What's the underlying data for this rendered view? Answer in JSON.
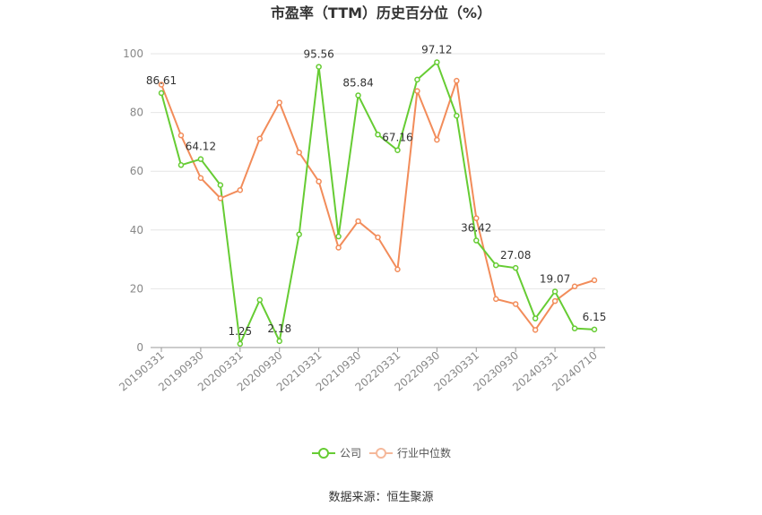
{
  "chart_data": {
    "type": "line",
    "title": "市盈率（TTM）历史百分位（%）",
    "xlabel": "",
    "ylabel": "",
    "ylim": [
      0,
      100
    ],
    "yticks": [
      0,
      20,
      40,
      60,
      80,
      100
    ],
    "x": [
      "20190331",
      "20190630",
      "20190930",
      "20191231",
      "20200331",
      "20200630",
      "20200930",
      "20201231",
      "20210331",
      "20210630",
      "20210930",
      "20211231",
      "20220331",
      "20220630",
      "20220930",
      "20221231",
      "20230331",
      "20230630",
      "20230930",
      "20231231",
      "20240331",
      "20240630",
      "20240710"
    ],
    "xtick_labels": [
      "20190331",
      "20190930",
      "20200331",
      "20200930",
      "20210331",
      "20210930",
      "20220331",
      "20220930",
      "20230331",
      "20230930",
      "20240331",
      "20240710"
    ],
    "series": [
      {
        "name": "公司",
        "color": "#66cc33",
        "values": [
          86.61,
          62.1,
          64.12,
          55.3,
          1.25,
          16.2,
          2.18,
          38.5,
          95.56,
          37.8,
          85.84,
          72.5,
          67.16,
          91.2,
          97.12,
          78.9,
          36.42,
          28.0,
          27.08,
          9.9,
          19.07,
          6.5,
          6.15
        ]
      },
      {
        "name": "行业中位数",
        "color": "#f28c5a",
        "values": [
          89.5,
          72.2,
          57.7,
          50.8,
          53.6,
          71.1,
          83.4,
          66.4,
          56.5,
          34.0,
          43.0,
          37.5,
          26.6,
          87.3,
          70.7,
          90.8,
          44.0,
          16.5,
          14.8,
          6.0,
          15.8,
          20.8,
          22.9
        ]
      }
    ],
    "data_labels": [
      {
        "series": 0,
        "index": 0,
        "text": "86.61"
      },
      {
        "series": 0,
        "index": 2,
        "text": "64.12"
      },
      {
        "series": 0,
        "index": 4,
        "text": "1.25"
      },
      {
        "series": 0,
        "index": 6,
        "text": "2.18"
      },
      {
        "series": 0,
        "index": 8,
        "text": "95.56"
      },
      {
        "series": 0,
        "index": 10,
        "text": "85.84"
      },
      {
        "series": 0,
        "index": 12,
        "text": "67.16"
      },
      {
        "series": 0,
        "index": 14,
        "text": "97.12"
      },
      {
        "series": 0,
        "index": 16,
        "text": "36.42"
      },
      {
        "series": 0,
        "index": 18,
        "text": "27.08"
      },
      {
        "series": 0,
        "index": 20,
        "text": "19.07"
      },
      {
        "series": 0,
        "index": 22,
        "text": "6.15"
      }
    ],
    "grid": true,
    "legend": "bottom-center"
  },
  "source": "数据来源：恒生聚源"
}
